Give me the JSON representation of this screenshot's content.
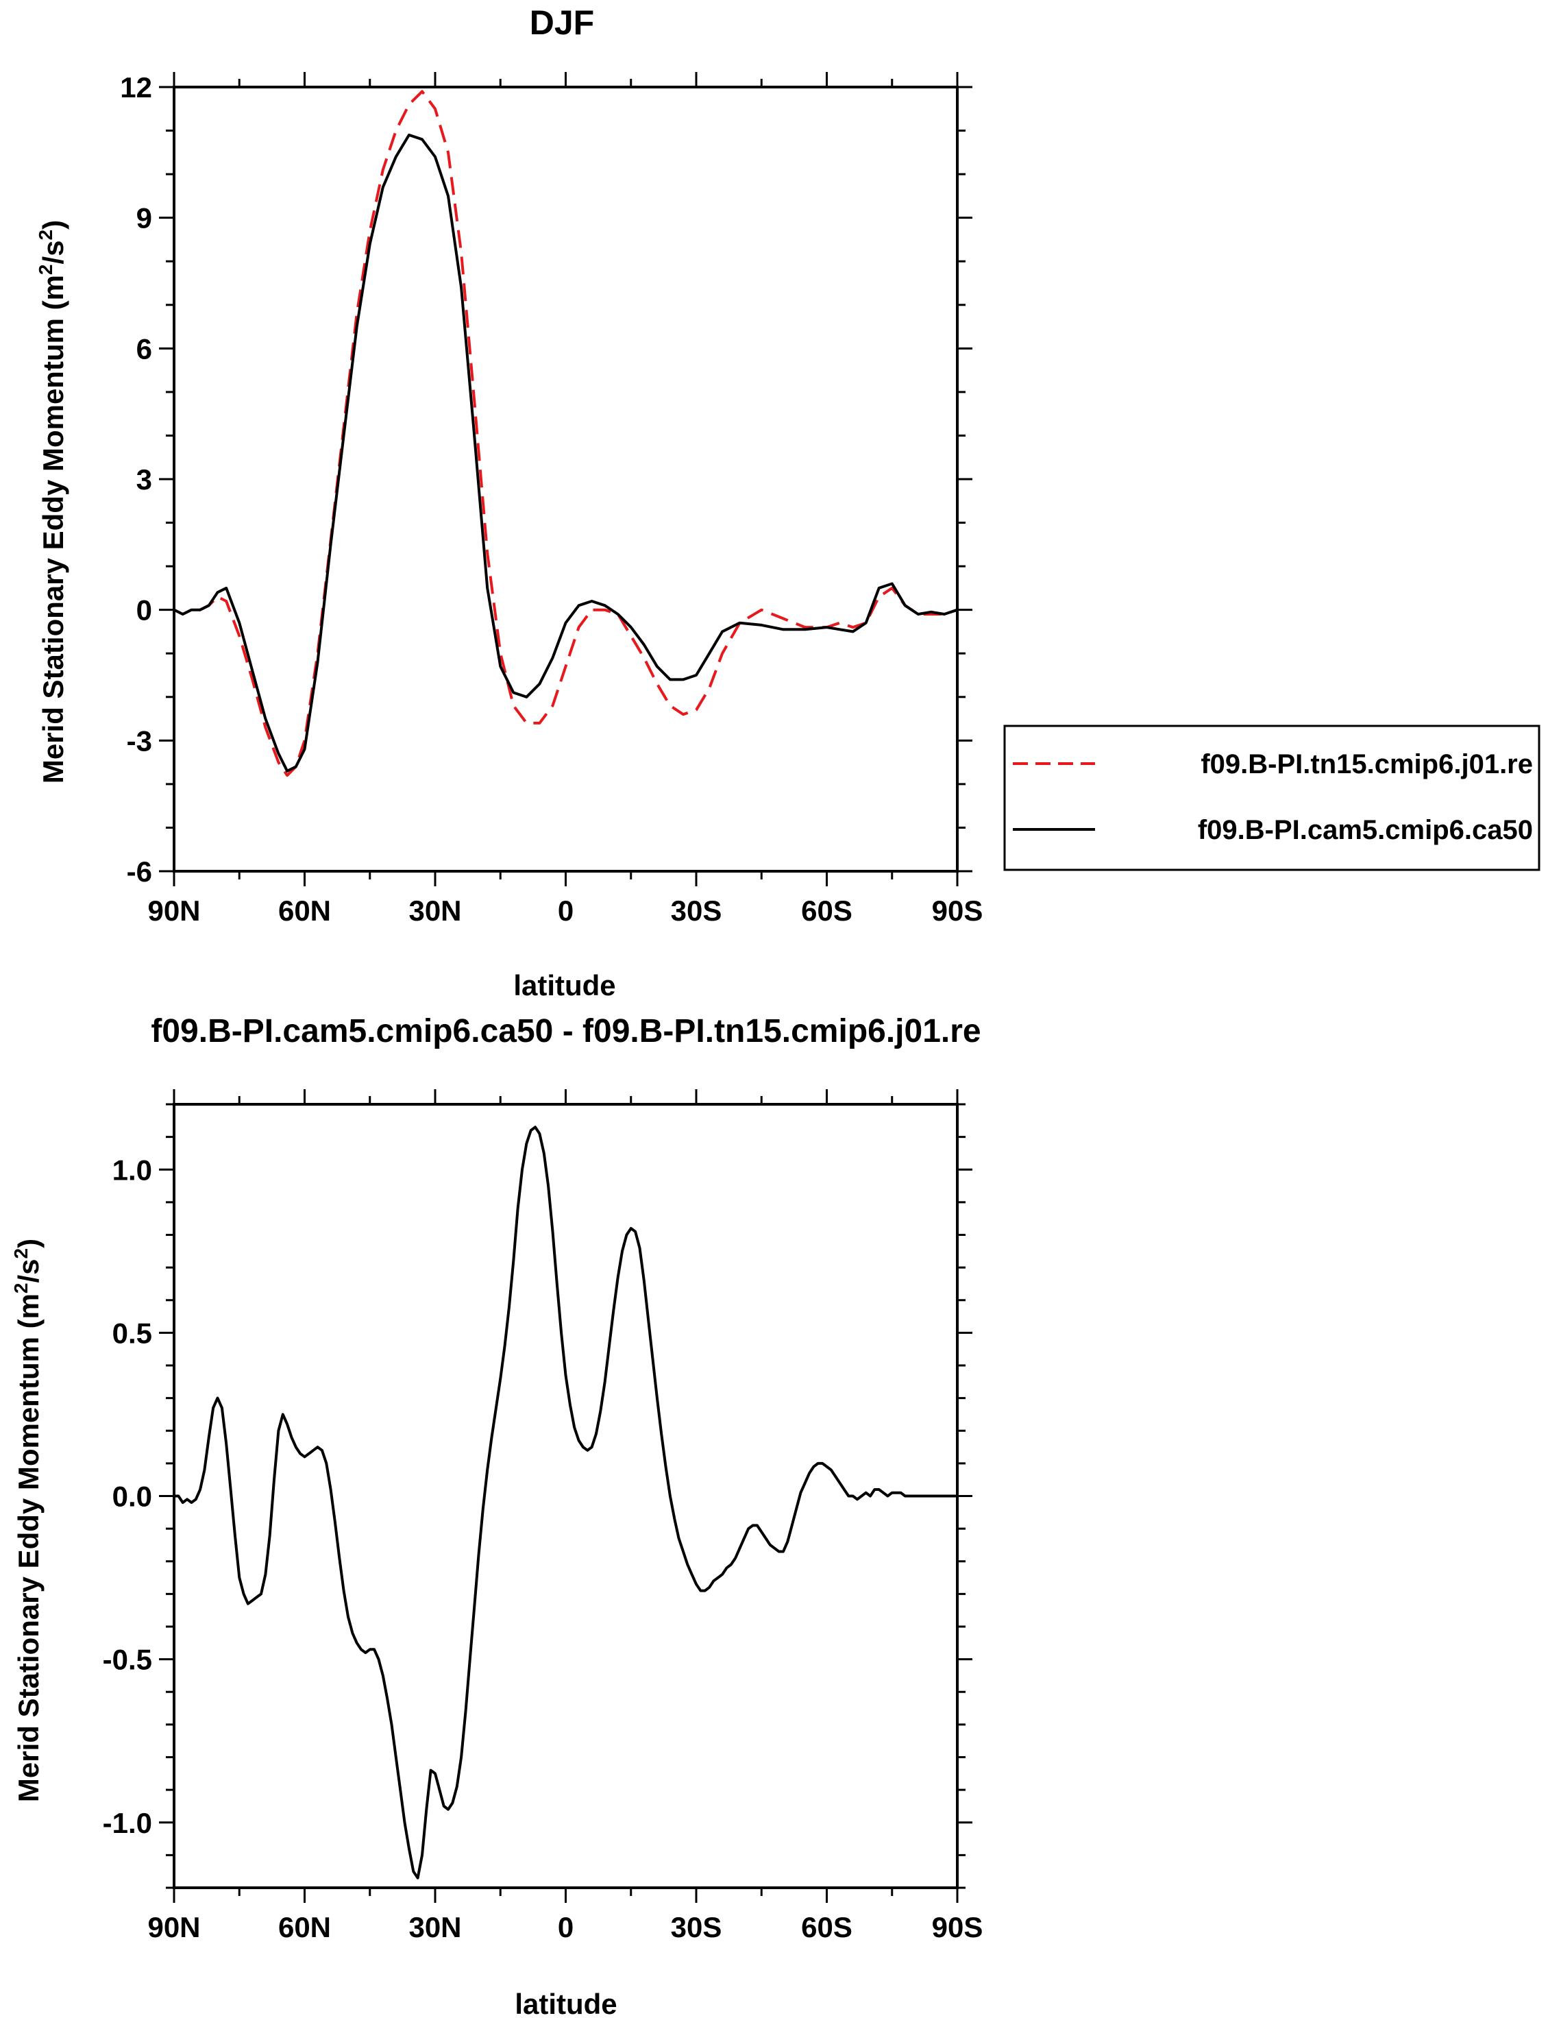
{
  "chart_data": [
    {
      "type": "line",
      "title": "DJF",
      "xlabel": "latitude",
      "ylabel": "Merid Stationary Eddy Momentum (m²/s²)",
      "ylabel_main": "Merid Stationary Eddy Momentum (m",
      "ylabel_sup1": "2",
      "ylabel_mid": "/s",
      "ylabel_sup2": "2",
      "ylabel_end": ")",
      "xlim": [
        90,
        -90
      ],
      "ylim": [
        -6,
        12
      ],
      "x_tick_values": [
        90,
        60,
        30,
        0,
        -30,
        -60,
        -90
      ],
      "x_tick_labels": [
        "90N",
        "60N",
        "30N",
        "0",
        "30S",
        "60S",
        "90S"
      ],
      "y_tick_values": [
        -6,
        -3,
        0,
        3,
        6,
        9,
        12
      ],
      "y_tick_labels": [
        "-6",
        "-3",
        "0",
        "3",
        "6",
        "9",
        "12"
      ],
      "grid": false,
      "legend_position": "right",
      "series": [
        {
          "name": "f09.B-PI.tn15.cmip6.j01.re",
          "color": "#e8191c",
          "dash": "dashed",
          "x": [
            90,
            88,
            86,
            84,
            82,
            80,
            78,
            75,
            72,
            69,
            66,
            64,
            62,
            60,
            57,
            54,
            51,
            48,
            45,
            42,
            39,
            36,
            33,
            30,
            27,
            24,
            21,
            18,
            15,
            12,
            9,
            6,
            3,
            0,
            -3,
            -6,
            -9,
            -12,
            -15,
            -18,
            -21,
            -24,
            -27,
            -30,
            -33,
            -36,
            -40,
            -45,
            -50,
            -55,
            -60,
            -63,
            -66,
            -69,
            -72,
            -75,
            -78,
            -81,
            -84,
            -87,
            -90
          ],
          "y": [
            0.0,
            -0.1,
            0.0,
            0.0,
            0.1,
            0.3,
            0.2,
            -0.6,
            -1.6,
            -2.7,
            -3.5,
            -3.8,
            -3.6,
            -3.0,
            -1.0,
            1.6,
            4.2,
            6.8,
            8.7,
            10.1,
            11.0,
            11.6,
            11.9,
            11.5,
            10.5,
            8.2,
            4.8,
            1.3,
            -1.0,
            -2.2,
            -2.6,
            -2.6,
            -2.2,
            -1.3,
            -0.4,
            0.0,
            0.0,
            -0.1,
            -0.6,
            -1.1,
            -1.7,
            -2.2,
            -2.4,
            -2.3,
            -1.8,
            -1.0,
            -0.3,
            0.0,
            -0.2,
            -0.4,
            -0.4,
            -0.3,
            -0.4,
            -0.3,
            0.3,
            0.5,
            0.1,
            -0.1,
            -0.1,
            -0.1,
            0.0
          ]
        },
        {
          "name": "f09.B-PI.cam5.cmip6.ca50",
          "color": "#000000",
          "dash": "solid",
          "x": [
            90,
            88,
            86,
            84,
            82,
            80,
            78,
            75,
            72,
            69,
            66,
            64,
            62,
            60,
            57,
            54,
            51,
            48,
            45,
            42,
            39,
            36,
            33,
            30,
            27,
            24,
            21,
            18,
            15,
            12,
            9,
            6,
            3,
            0,
            -3,
            -6,
            -9,
            -12,
            -15,
            -18,
            -21,
            -24,
            -27,
            -30,
            -33,
            -36,
            -40,
            -45,
            -50,
            -55,
            -60,
            -63,
            -66,
            -69,
            -72,
            -75,
            -78,
            -81,
            -84,
            -87,
            -90
          ],
          "y": [
            0.0,
            -0.1,
            0.0,
            0.0,
            0.1,
            0.4,
            0.5,
            -0.3,
            -1.4,
            -2.5,
            -3.3,
            -3.7,
            -3.6,
            -3.2,
            -1.2,
            1.5,
            4.0,
            6.5,
            8.4,
            9.7,
            10.4,
            10.9,
            10.8,
            10.4,
            9.5,
            7.4,
            4.0,
            0.5,
            -1.3,
            -1.9,
            -2.0,
            -1.7,
            -1.1,
            -0.3,
            0.1,
            0.2,
            0.1,
            -0.1,
            -0.4,
            -0.8,
            -1.3,
            -1.6,
            -1.6,
            -1.5,
            -1.0,
            -0.5,
            -0.3,
            -0.35,
            -0.45,
            -0.45,
            -0.4,
            -0.45,
            -0.5,
            -0.3,
            0.5,
            0.6,
            0.1,
            -0.1,
            -0.05,
            -0.1,
            0.0
          ]
        }
      ]
    },
    {
      "type": "line",
      "title": "f09.B-PI.cam5.cmip6.ca50 - f09.B-PI.tn15.cmip6.j01.re",
      "xlabel": "latitude",
      "ylabel": "Merid Stationary Eddy Momentum (m²/s²)",
      "ylabel_main": "Merid Stationary Eddy Momentum (m",
      "ylabel_sup1": "2",
      "ylabel_mid": "/s",
      "ylabel_sup2": "2",
      "ylabel_end": ")",
      "xlim": [
        90,
        -90
      ],
      "ylim": [
        -1.2,
        1.2
      ],
      "x_tick_values": [
        90,
        60,
        30,
        0,
        -30,
        -60,
        -90
      ],
      "x_tick_labels": [
        "90N",
        "60N",
        "30N",
        "0",
        "30S",
        "60S",
        "90S"
      ],
      "y_tick_values": [
        -1.0,
        -0.5,
        0.0,
        0.5,
        1.0
      ],
      "y_tick_labels": [
        "-1.0",
        "-0.5",
        "0.0",
        "0.5",
        "1.0"
      ],
      "grid": false,
      "series": [
        {
          "color": "#000000",
          "dash": "solid",
          "x": [
            90,
            89,
            88,
            87,
            86,
            85,
            84,
            83,
            82,
            81,
            80,
            79,
            78,
            77,
            76,
            75,
            74,
            73,
            72,
            71,
            70,
            69,
            68,
            67,
            66,
            65,
            64,
            63,
            62,
            61,
            60,
            59,
            58,
            57,
            56,
            55,
            54,
            53,
            52,
            51,
            50,
            49,
            48,
            47,
            46,
            45,
            44,
            43,
            42,
            41,
            40,
            39,
            38,
            37,
            36,
            35,
            34,
            33,
            32,
            31,
            30,
            29,
            28,
            27,
            26,
            25,
            24,
            23,
            22,
            21,
            20,
            19,
            18,
            17,
            16,
            15,
            14,
            13,
            12,
            11,
            10,
            9,
            8,
            7,
            6,
            5,
            4,
            3,
            2,
            1,
            0,
            -1,
            -2,
            -3,
            -4,
            -5,
            -6,
            -7,
            -8,
            -9,
            -10,
            -11,
            -12,
            -13,
            -14,
            -15,
            -16,
            -17,
            -18,
            -19,
            -20,
            -21,
            -22,
            -23,
            -24,
            -25,
            -26,
            -27,
            -28,
            -29,
            -30,
            -31,
            -32,
            -33,
            -34,
            -35,
            -36,
            -37,
            -38,
            -39,
            -40,
            -41,
            -42,
            -43,
            -44,
            -45,
            -46,
            -47,
            -48,
            -49,
            -50,
            -51,
            -52,
            -53,
            -54,
            -55,
            -56,
            -57,
            -58,
            -59,
            -60,
            -61,
            -62,
            -63,
            -64,
            -65,
            -66,
            -67,
            -68,
            -69,
            -70,
            -71,
            -72,
            -73,
            -74,
            -75,
            -76,
            -77,
            -78,
            -79,
            -80,
            -81,
            -82,
            -83,
            -84,
            -85,
            -86,
            -87,
            -88,
            -89,
            -90
          ],
          "y": [
            0.0,
            0.0,
            -0.02,
            -0.01,
            -0.02,
            -0.01,
            0.02,
            0.08,
            0.18,
            0.27,
            0.3,
            0.27,
            0.16,
            0.02,
            -0.12,
            -0.25,
            -0.3,
            -0.33,
            -0.32,
            -0.31,
            -0.3,
            -0.24,
            -0.12,
            0.05,
            0.2,
            0.25,
            0.22,
            0.18,
            0.15,
            0.13,
            0.12,
            0.13,
            0.14,
            0.15,
            0.14,
            0.1,
            0.02,
            -0.08,
            -0.19,
            -0.29,
            -0.37,
            -0.42,
            -0.45,
            -0.47,
            -0.48,
            -0.47,
            -0.47,
            -0.5,
            -0.55,
            -0.62,
            -0.7,
            -0.8,
            -0.9,
            -1.0,
            -1.08,
            -1.15,
            -1.17,
            -1.1,
            -0.96,
            -0.84,
            -0.85,
            -0.9,
            -0.95,
            -0.96,
            -0.94,
            -0.89,
            -0.8,
            -0.66,
            -0.5,
            -0.34,
            -0.18,
            -0.04,
            0.08,
            0.18,
            0.27,
            0.36,
            0.46,
            0.58,
            0.72,
            0.88,
            1.0,
            1.08,
            1.12,
            1.13,
            1.11,
            1.05,
            0.95,
            0.81,
            0.65,
            0.5,
            0.37,
            0.28,
            0.21,
            0.17,
            0.15,
            0.14,
            0.15,
            0.19,
            0.26,
            0.35,
            0.46,
            0.57,
            0.67,
            0.75,
            0.8,
            0.82,
            0.81,
            0.76,
            0.66,
            0.54,
            0.42,
            0.3,
            0.19,
            0.09,
            0.0,
            -0.07,
            -0.13,
            -0.17,
            -0.21,
            -0.24,
            -0.27,
            -0.29,
            -0.29,
            -0.28,
            -0.26,
            -0.25,
            -0.24,
            -0.22,
            -0.21,
            -0.19,
            -0.16,
            -0.13,
            -0.1,
            -0.09,
            -0.09,
            -0.11,
            -0.13,
            -0.15,
            -0.16,
            -0.17,
            -0.17,
            -0.14,
            -0.09,
            -0.04,
            0.01,
            0.04,
            0.07,
            0.09,
            0.1,
            0.1,
            0.09,
            0.08,
            0.06,
            0.04,
            0.02,
            0.0,
            0.0,
            -0.01,
            0.0,
            0.01,
            0.0,
            0.02,
            0.02,
            0.01,
            0.0,
            0.01,
            0.01,
            0.01,
            0.0,
            0.0,
            0.0,
            0.0,
            0.0,
            0.0,
            0.0,
            0.0,
            0.0,
            0.0,
            0.0,
            0.0,
            0.0
          ]
        }
      ]
    }
  ]
}
